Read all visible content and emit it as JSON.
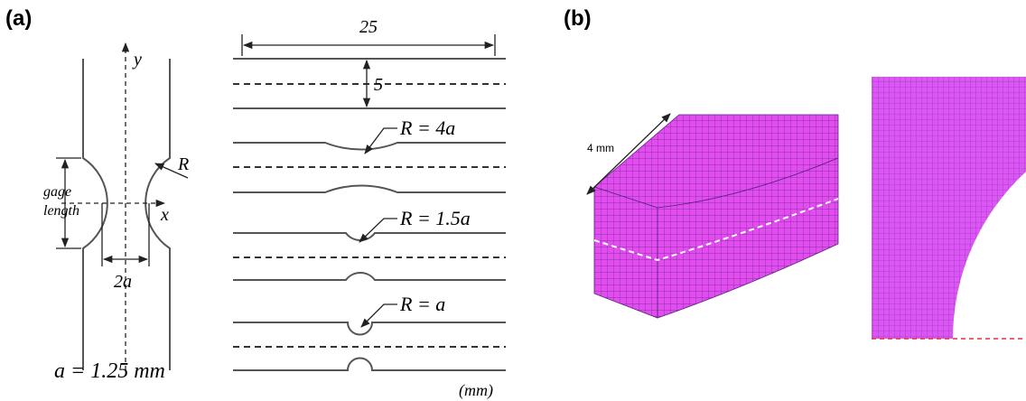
{
  "panel_a": {
    "label": "(a)",
    "specimen": {
      "y_axis": "y",
      "x_axis": "x",
      "radius": "R",
      "gage_length": [
        "gage",
        "length"
      ],
      "width": "2a",
      "parameter": "a = 1.25 mm"
    },
    "profiles": {
      "length": "25",
      "spacing": "5",
      "radii": [
        "R = 4a",
        "R = 1.5a",
        "R = a"
      ],
      "unit": "(mm)"
    }
  },
  "panel_b": {
    "label": "(b)",
    "thickness": "4 mm"
  }
}
